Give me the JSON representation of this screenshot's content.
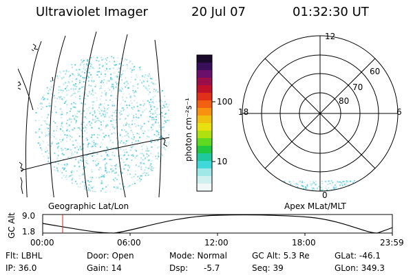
{
  "header": {
    "instrument": "Ultraviolet Imager",
    "date": "20 Jul 07",
    "time": "01:32:30 UT"
  },
  "colorbar": {
    "unit_label": "photon cm⁻²s⁻¹",
    "ticks": [
      "100",
      "10"
    ],
    "colors": [
      "#1a0a2a",
      "#3a0f5a",
      "#6a0f6a",
      "#9a0f4a",
      "#c0102a",
      "#e0301a",
      "#f06010",
      "#f89010",
      "#f0c010",
      "#e8e010",
      "#b0e010",
      "#60d820",
      "#20c840",
      "#20c8a0",
      "#40d8d8",
      "#a0e8e8",
      "#d0f0f0",
      "#f0f8f8"
    ]
  },
  "polar": {
    "mlt_labels": [
      "12",
      "18",
      "6",
      "0"
    ],
    "lat_labels": [
      "60",
      "70",
      "80"
    ]
  },
  "labels": {
    "geo": "Geographic Lat/Lon",
    "apex": "Apex MLat/MLT"
  },
  "alt_plot": {
    "axis_label": "GC Alt",
    "y_top": "9.0",
    "y_bottom": "1.8",
    "time_ticks": [
      "00:00",
      "06:00",
      "12:00",
      "18:00",
      "23:59"
    ],
    "current_time_color": "#cc2020"
  },
  "status": {
    "flt": "Flt: LBHL",
    "door": "Door: Open",
    "mode": "Mode: Normal",
    "gc_alt": "GC Alt: 5.3 Re",
    "glat": "GLat: -46.1",
    "ip": "IP: 36.0",
    "gain": "Gain: 14",
    "dsp_label": "Dsp:",
    "dsp_value": "-5.7",
    "seq": "Seq: 39",
    "glon": "GLon: 349.3"
  }
}
